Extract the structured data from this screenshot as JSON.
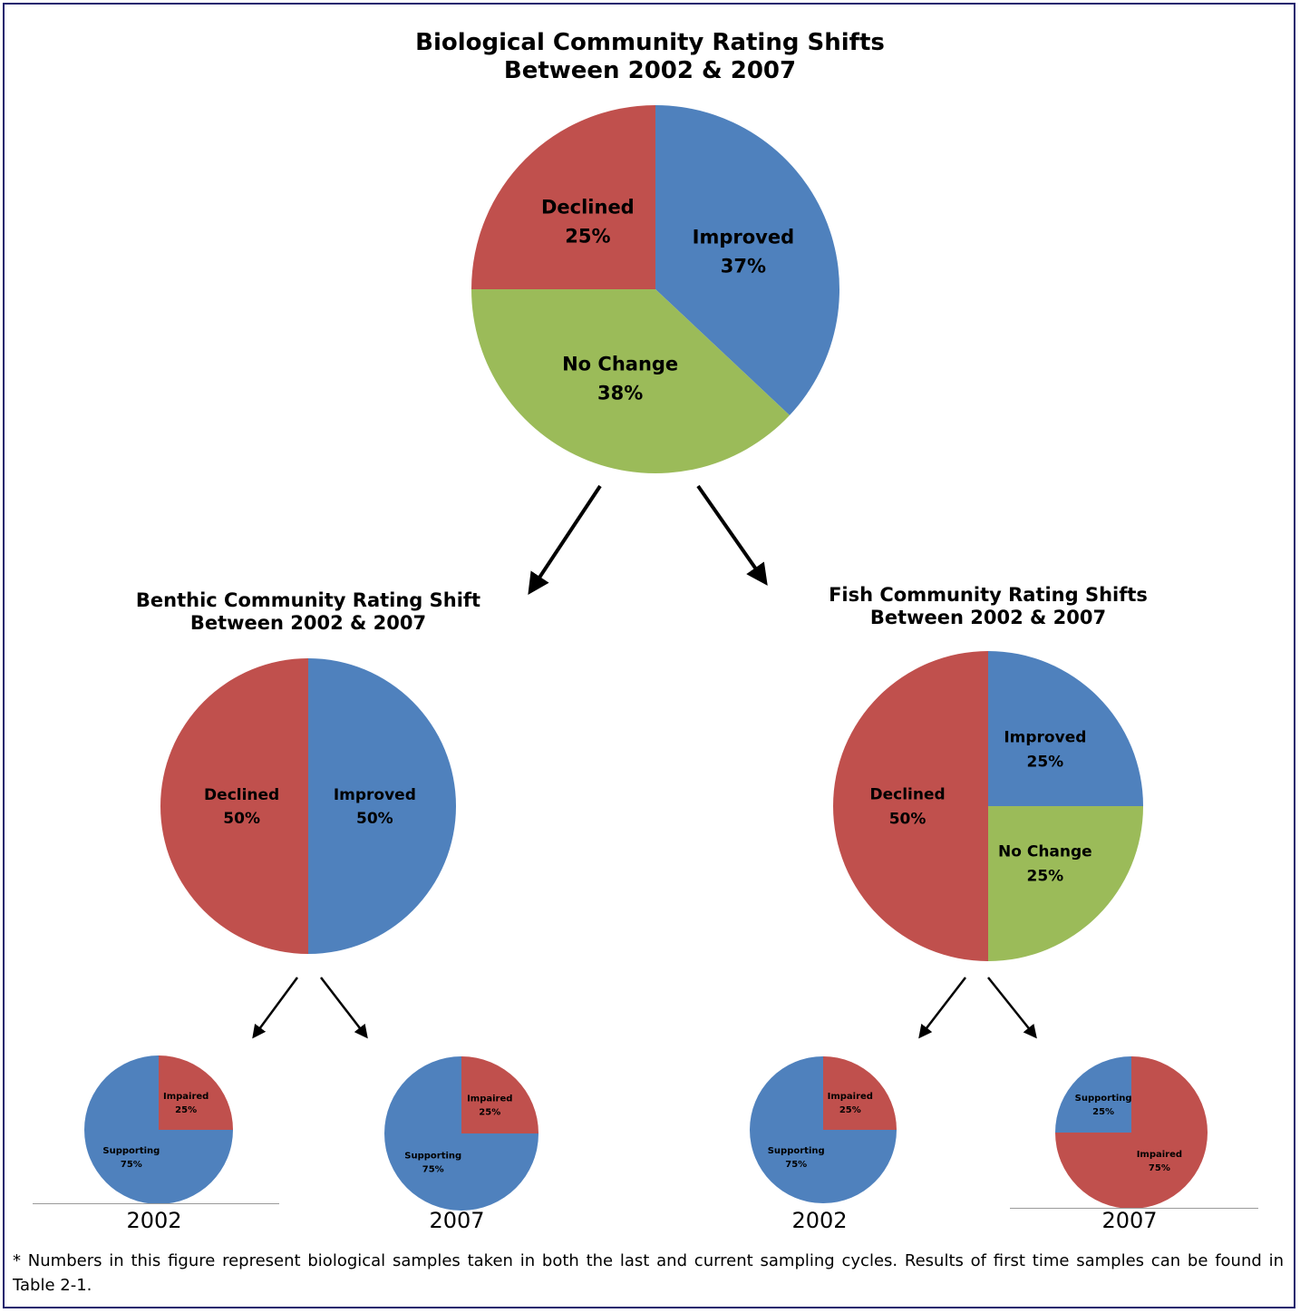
{
  "colors": {
    "improved": "#4F81BD",
    "declined": "#C0504D",
    "no_change": "#9BBB59",
    "supporting": "#4F81BD",
    "impaired": "#C0504D",
    "border": "#1F1F6E"
  },
  "chart_data": [
    {
      "id": "main",
      "type": "pie",
      "title": "Biological Community Rating Shifts Between 2002 & 2007",
      "title_lines": [
        "Biological Community Rating Shifts",
        "Between 2002 & 2007"
      ],
      "slices": [
        {
          "label": "Improved",
          "value": 37,
          "value_label": "37%",
          "color": "#4F81BD"
        },
        {
          "label": "No Change",
          "value": 38,
          "value_label": "38%",
          "color": "#9BBB59"
        },
        {
          "label": "Declined",
          "value": 25,
          "value_label": "25%",
          "color": "#C0504D"
        }
      ]
    },
    {
      "id": "benthic",
      "type": "pie",
      "title": "Benthic Community Rating Shift Between 2002 & 2007",
      "title_lines": [
        "Benthic Community Rating Shift",
        "Between 2002 & 2007"
      ],
      "slices": [
        {
          "label": "Improved",
          "value": 50,
          "value_label": "50%",
          "color": "#4F81BD"
        },
        {
          "label": "Declined",
          "value": 50,
          "value_label": "50%",
          "color": "#C0504D"
        }
      ]
    },
    {
      "id": "fish",
      "type": "pie",
      "title": "Fish Community Rating Shifts Between 2002 & 2007",
      "title_lines": [
        "Fish Community Rating Shifts",
        "Between 2002 & 2007"
      ],
      "slices": [
        {
          "label": "Improved",
          "value": 25,
          "value_label": "25%",
          "color": "#4F81BD"
        },
        {
          "label": "No Change",
          "value": 25,
          "value_label": "25%",
          "color": "#9BBB59"
        },
        {
          "label": "Declined",
          "value": 50,
          "value_label": "50%",
          "color": "#C0504D"
        }
      ]
    },
    {
      "id": "benthic-2002",
      "type": "pie",
      "caption": "2002",
      "slices": [
        {
          "label": "Impaired",
          "value": 25,
          "value_label": "25%",
          "color": "#C0504D"
        },
        {
          "label": "Supporting",
          "value": 75,
          "value_label": "75%",
          "color": "#4F81BD"
        }
      ]
    },
    {
      "id": "benthic-2007",
      "type": "pie",
      "caption": "2007",
      "slices": [
        {
          "label": "Impaired",
          "value": 25,
          "value_label": "25%",
          "color": "#C0504D"
        },
        {
          "label": "Supporting",
          "value": 75,
          "value_label": "75%",
          "color": "#4F81BD"
        }
      ]
    },
    {
      "id": "fish-2002",
      "type": "pie",
      "caption": "2002",
      "slices": [
        {
          "label": "Impaired",
          "value": 25,
          "value_label": "25%",
          "color": "#C0504D"
        },
        {
          "label": "Supporting",
          "value": 75,
          "value_label": "75%",
          "color": "#4F81BD"
        }
      ]
    },
    {
      "id": "fish-2007",
      "type": "pie",
      "caption": "2007",
      "slices": [
        {
          "label": "Impaired",
          "value": 75,
          "value_label": "75%",
          "color": "#C0504D"
        },
        {
          "label": "Supporting",
          "value": 25,
          "value_label": "25%",
          "color": "#4F81BD"
        }
      ]
    }
  ],
  "footnote": "* Numbers in this figure represent biological samples taken in both the last and current sampling cycles.  Results of first time samples can be found in Table 2-1."
}
